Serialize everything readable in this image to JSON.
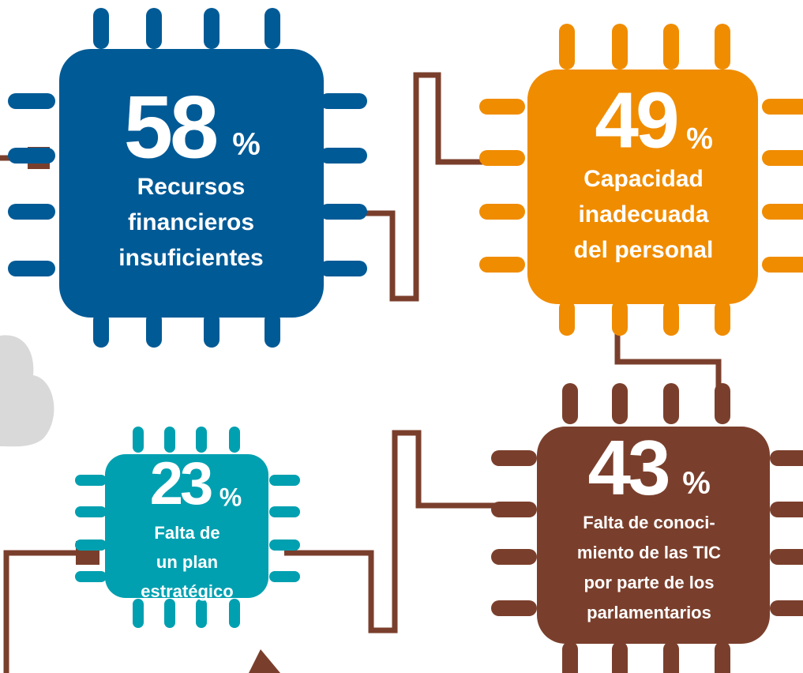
{
  "chips": [
    {
      "value": 58,
      "unit": "%",
      "label_lines": [
        "Recursos",
        "financieros",
        "insuficientes"
      ],
      "color": "#005a96"
    },
    {
      "value": 49,
      "unit": "%",
      "label_lines": [
        "Capacidad",
        "inadecuada",
        "del personal"
      ],
      "color": "#f08c00"
    },
    {
      "value": 23,
      "unit": "%",
      "label_lines": [
        "Falta de",
        "un plan",
        "estratégico"
      ],
      "color": "#00a0b0"
    },
    {
      "value": 43,
      "unit": "%",
      "label_lines": [
        "Falta de conoci-",
        "miento de las TIC",
        "por parte de los",
        "parlamentarios"
      ],
      "color": "#7a3f2c"
    }
  ]
}
